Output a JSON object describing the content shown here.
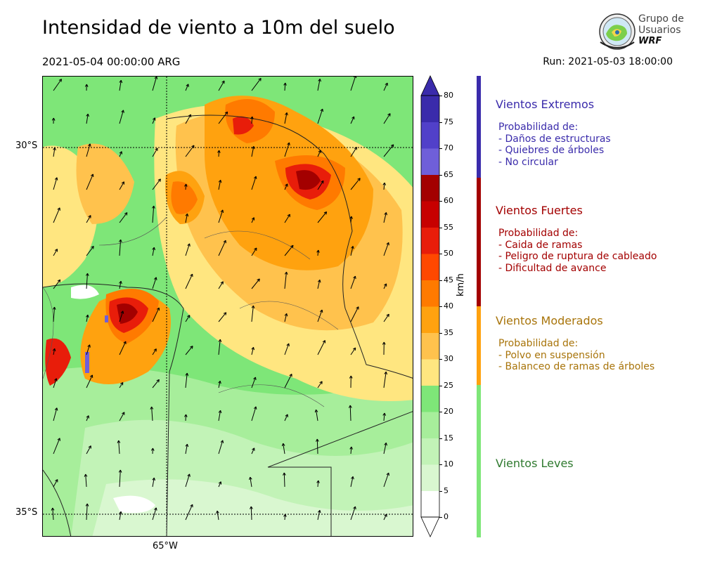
{
  "header": {
    "title": "Intensidad de viento a 10m del suelo",
    "valid_time": "2021-05-04 00:00:00 ARG",
    "run": "Run: 2021-05-03 18:00:00"
  },
  "logo": {
    "line1": "Grupo de",
    "line2": "Usuarios",
    "line3": "WRF"
  },
  "map": {
    "lat_labels": [
      "30°S",
      "35°S"
    ],
    "lon_labels": [
      "65°W"
    ],
    "wind_speed_palette": {
      "0-5": "#ffffff",
      "5-10": "#d9f7d0",
      "10-15": "#c2f3b7",
      "15-20": "#a7ee9b",
      "20-25": "#7ee678",
      "25-30": "#ffe680",
      "30-35": "#ffc24d",
      "35-40": "#ffa20f",
      "40-45": "#ff7a00",
      "45-50": "#ff4800",
      "50-55": "#e81d0a",
      "55-60": "#c70000",
      "60-65": "#a30000",
      "65-70": "#6f5fd9",
      "70-75": "#5140c9",
      "75-80": "#3a2bab"
    }
  },
  "colorbar": {
    "unit": "km/h",
    "ticks": [
      "0",
      "5",
      "10",
      "15",
      "20",
      "25",
      "30",
      "35",
      "40",
      "45",
      "50",
      "55",
      "60",
      "65",
      "70",
      "75",
      "80"
    ],
    "colors": [
      "#ffffff",
      "#d9f7d0",
      "#c2f3b7",
      "#a7ee9b",
      "#7ee678",
      "#ffe680",
      "#ffc24d",
      "#ffa20f",
      "#ff7a00",
      "#ff4800",
      "#e81d0a",
      "#c70000",
      "#a30000",
      "#6f5fd9",
      "#5140c9",
      "#3a2bab"
    ]
  },
  "legend": {
    "extremos": {
      "title": "Vientos Extremos",
      "intro": "Probabilidad de:",
      "items": [
        "- Daños de estructuras",
        "- Quiebres de árboles",
        "- No circular"
      ],
      "color": "#3a2bab"
    },
    "fuertes": {
      "title": "Vientos Fuertes",
      "intro": "Probabilidad de:",
      "items": [
        "- Caida de ramas",
        "- Peligro de ruptura de cableado",
        "- Dificultad de avance"
      ],
      "color": "#a30000"
    },
    "moderados": {
      "title": "Vientos Moderados",
      "intro": "Probabilidad de:",
      "items": [
        "- Polvo en suspensión",
        "- Balanceo de ramas de árboles"
      ],
      "color": "#a8740a",
      "bar_color": "#ffa20f"
    },
    "leves": {
      "title": "Vientos Leves",
      "color": "#2f7a2f",
      "bar_color": "#7ee678"
    }
  }
}
